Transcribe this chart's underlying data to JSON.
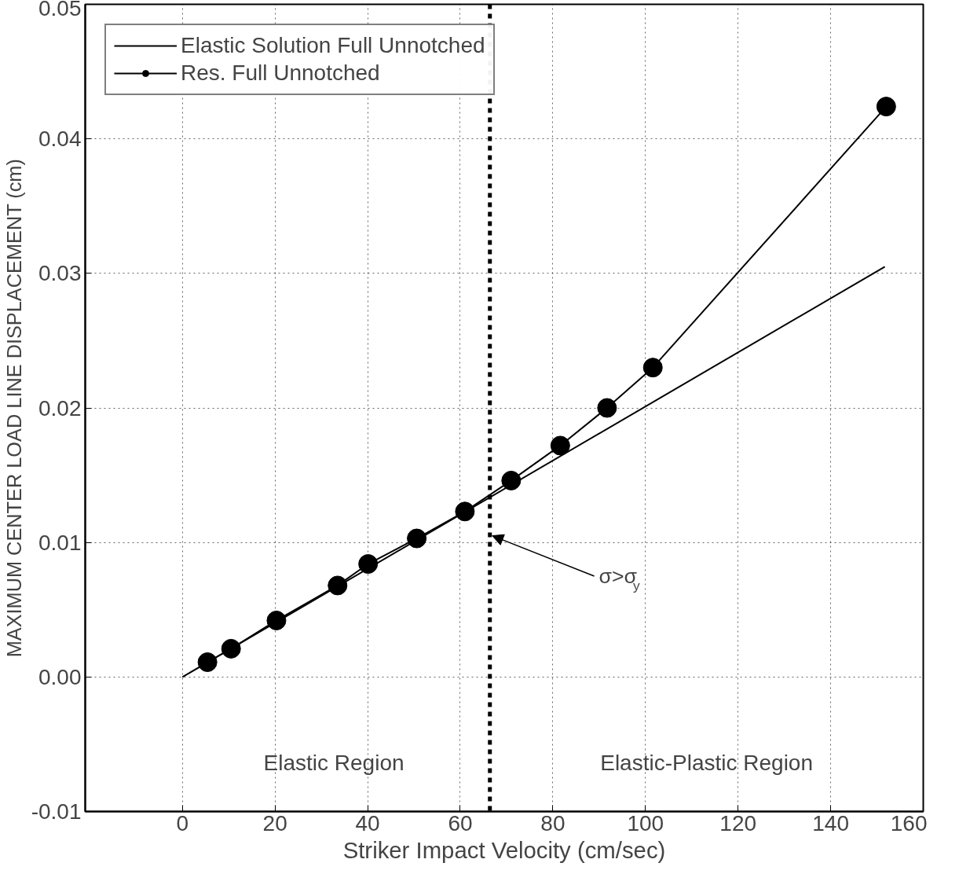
{
  "chart_data": {
    "type": "line",
    "xlabel": "Striker Impact Velocity (cm/sec)",
    "ylabel": "MAXIMUM CENTER LOAD LINE DISPLACEMENT (cm)",
    "xlim": [
      -21,
      160
    ],
    "ylim": [
      -0.01,
      0.05
    ],
    "xticks": [
      0,
      20,
      40,
      60,
      80,
      100,
      120,
      140,
      160
    ],
    "yticks": [
      {
        "value": -0.01,
        "label": "-0.01"
      },
      {
        "value": 0,
        "label": "0.00"
      },
      {
        "value": 0.01,
        "label": "0.01"
      },
      {
        "value": 0.02,
        "label": "0.02"
      },
      {
        "value": 0.03,
        "label": "0.03"
      },
      {
        "value": 0.04,
        "label": "0.04"
      },
      {
        "value": 0.05,
        "label": "0.05"
      }
    ],
    "grid": true,
    "legend": "top left",
    "line_style": "solid",
    "series": [
      {
        "name": "Elastic Solution Full Unnotched",
        "color": "#000000",
        "marker": "none",
        "x": [
          0,
          151.7
        ],
        "values": [
          0,
          0.0305
        ]
      },
      {
        "name": "Res. Full Unnotched",
        "color": "#000000",
        "marker": "circle",
        "x": [
          5.4,
          10.5,
          20.3,
          33.5,
          40.1,
          50.6,
          61,
          71,
          81.6,
          91.7,
          101.6,
          152
        ],
        "values": [
          0.0011,
          0.0021,
          0.0042,
          0.0068,
          0.0084,
          0.0103,
          0.0123,
          0.0146,
          0.0172,
          0.02,
          0.023,
          0.0424
        ]
      }
    ],
    "ref_lines": [
      {
        "axis": "x",
        "value": 66.4,
        "color": "#000000",
        "line_style": "dashed"
      }
    ],
    "annotations": [
      "Elastic Region",
      "Elastic-Plastic Region",
      {
        "text": "σ>σ$_{y}$",
        "x": 66.4,
        "y": 0.0105
      }
    ]
  }
}
